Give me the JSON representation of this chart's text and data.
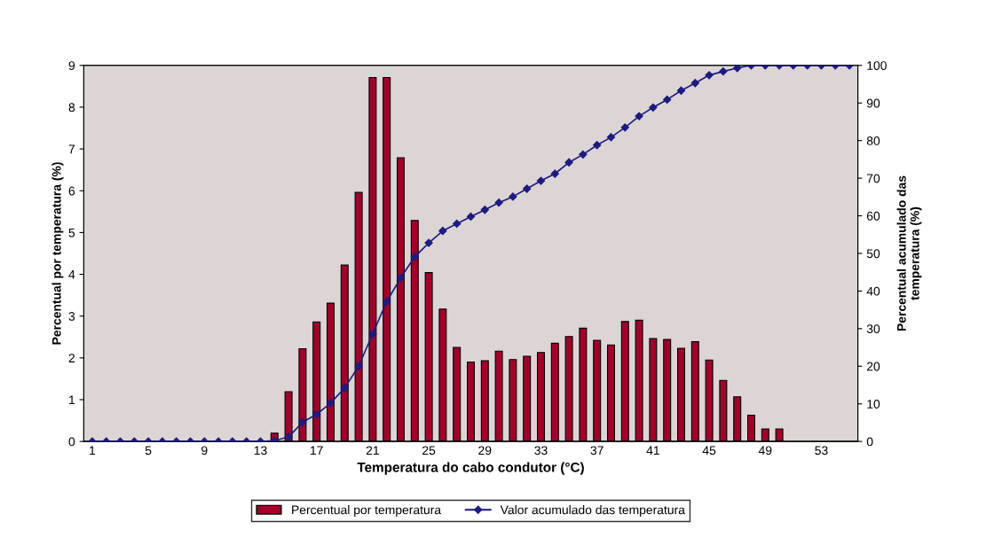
{
  "chart_data": {
    "type": "bar",
    "xlabel": "Temperatura do cabo condutor (°C)",
    "ylabel": "Percentual por temperatura (%)",
    "y2label": "Percentual acumulado das\ntemperatura (%)",
    "categories": [
      "1",
      null,
      null,
      null,
      "5",
      null,
      null,
      null,
      "9",
      null,
      null,
      null,
      "13",
      null,
      null,
      null,
      "17",
      null,
      null,
      null,
      "21",
      null,
      null,
      null,
      "25",
      null,
      null,
      null,
      "29",
      null,
      null,
      null,
      "33",
      null,
      null,
      null,
      "37",
      null,
      null,
      null,
      "41",
      null,
      null,
      null,
      "45",
      null,
      null,
      null,
      "49",
      null,
      null,
      null,
      "53",
      null,
      null
    ],
    "series": [
      {
        "name": "Percentual por temperatura",
        "color": "#a0002a",
        "values": [
          0,
          0,
          0,
          0,
          0,
          0,
          0,
          0,
          0,
          0,
          0,
          0,
          0,
          0.2,
          1.19,
          2.22,
          2.86,
          3.31,
          4.22,
          5.96,
          8.71,
          8.71,
          6.79,
          5.29,
          4.04,
          3.17,
          2.25,
          1.9,
          1.93,
          2.16,
          1.96,
          2.04,
          2.13,
          2.35,
          2.51,
          2.71,
          2.42,
          2.31,
          2.87,
          2.9,
          2.46,
          2.44,
          2.23,
          2.39,
          1.95,
          1.46,
          1.07,
          0.63,
          0.3,
          0.3,
          0,
          0,
          0,
          0,
          0
        ]
      },
      {
        "name": "Valor acumulado das temperatura",
        "type": "line",
        "axis": "y2",
        "color": "#1c1c80",
        "marker": "diamond",
        "values": [
          0,
          0,
          0,
          0,
          0,
          0,
          0,
          0,
          0,
          0,
          0,
          0,
          0,
          0.2,
          1.2,
          5.1,
          7.2,
          10.2,
          14.2,
          20,
          28.6,
          37.2,
          43.5,
          49.1,
          52.8,
          56,
          57.9,
          59.8,
          61.6,
          63.5,
          65.1,
          67.2,
          69.3,
          71.2,
          74.2,
          76.3,
          78.8,
          80.9,
          83.5,
          86.5,
          88.8,
          90.9,
          93.3,
          95.3,
          97.4,
          98.4,
          99.3,
          100,
          100,
          100,
          100,
          100,
          100,
          100,
          100
        ]
      }
    ],
    "ylim": [
      0,
      9
    ],
    "yticks": [
      0,
      1,
      2,
      3,
      4,
      5,
      6,
      7,
      8,
      9
    ],
    "y2lim": [
      0,
      100
    ],
    "y2ticks": [
      0,
      10,
      20,
      30,
      40,
      50,
      60,
      70,
      80,
      90,
      100
    ],
    "grid": false,
    "legend": "bottom"
  }
}
